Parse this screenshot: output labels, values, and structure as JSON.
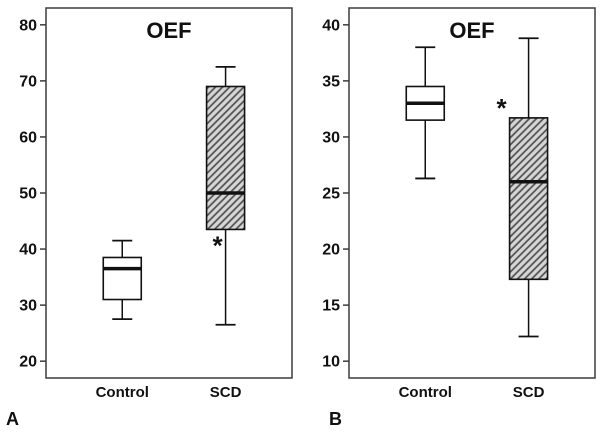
{
  "style": {
    "text_color": "#111111",
    "frame_color": "#3c3c3c",
    "hatch_bg": "#d6d6d6",
    "hatch_line": "#4f4f4f",
    "box_fill": "#ffffff"
  },
  "chart_data": [
    {
      "type": "box",
      "panel_label": "A",
      "title": "OEF",
      "categories": [
        "Control",
        "SCD"
      ],
      "ylim": [
        17,
        83
      ],
      "yticks": [
        20,
        30,
        40,
        50,
        60,
        70,
        80
      ],
      "grid": false,
      "legend": false,
      "boxes": [
        {
          "category": "Control",
          "whisker_low": 27.5,
          "q1": 31,
          "median": 36.5,
          "q3": 38.5,
          "whisker_high": 41.5,
          "fill": "white"
        },
        {
          "category": "SCD",
          "whisker_low": 26.5,
          "q1": 43.5,
          "median": 50,
          "q3": 69,
          "whisker_high": 72.5,
          "fill": "hatched",
          "annotation": "*",
          "annotation_value": 40.5,
          "annotation_dx": -8
        }
      ]
    },
    {
      "type": "box",
      "panel_label": "B",
      "title": "OEF",
      "categories": [
        "Control",
        "SCD"
      ],
      "ylim": [
        8.5,
        41.5
      ],
      "yticks": [
        10,
        15,
        20,
        25,
        30,
        35,
        40
      ],
      "grid": false,
      "legend": false,
      "boxes": [
        {
          "category": "Control",
          "whisker_low": 26.3,
          "q1": 31.5,
          "median": 33,
          "q3": 34.5,
          "whisker_high": 38,
          "fill": "white"
        },
        {
          "category": "SCD",
          "whisker_low": 12.2,
          "q1": 17.3,
          "median": 26,
          "q3": 31.7,
          "whisker_high": 38.8,
          "fill": "hatched",
          "annotation": "*",
          "annotation_value": 32.5,
          "annotation_dx": -27
        }
      ]
    }
  ]
}
